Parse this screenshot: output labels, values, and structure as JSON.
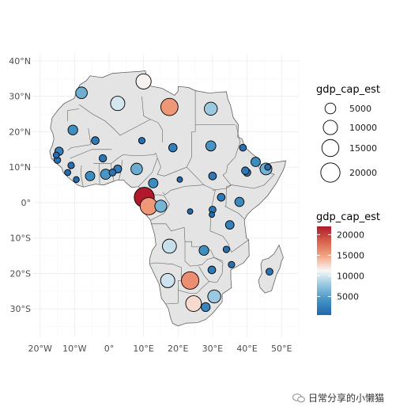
{
  "chart_data": {
    "type": "scatter",
    "subtype": "bubble-map",
    "region": "Africa",
    "title": "",
    "xlabel": "",
    "ylabel": "",
    "xlim": [
      -22,
      55
    ],
    "ylim": [
      -38,
      42
    ],
    "grid": true,
    "x_ticks": [
      {
        "value": -20,
        "label": "20°W"
      },
      {
        "value": -10,
        "label": "10°W"
      },
      {
        "value": 0,
        "label": "0°"
      },
      {
        "value": 10,
        "label": "10°E"
      },
      {
        "value": 20,
        "label": "20°E"
      },
      {
        "value": 30,
        "label": "30°E"
      },
      {
        "value": 40,
        "label": "40°E"
      },
      {
        "value": 50,
        "label": "50°E"
      }
    ],
    "y_ticks": [
      {
        "value": 40,
        "label": "40°N"
      },
      {
        "value": 30,
        "label": "30°N"
      },
      {
        "value": 20,
        "label": "20°N"
      },
      {
        "value": 10,
        "label": "10°N"
      },
      {
        "value": 0,
        "label": "0°"
      },
      {
        "value": -10,
        "label": "10°S"
      },
      {
        "value": -20,
        "label": "20°S"
      },
      {
        "value": -30,
        "label": "30°S"
      }
    ],
    "size_legend": {
      "title": "gdp_cap_est",
      "values": [
        5000,
        10000,
        15000,
        20000
      ],
      "labels": [
        "5000",
        "10000",
        "15000",
        "20000"
      ]
    },
    "color_legend": {
      "title": "gdp_cap_est",
      "min": 500,
      "max": 22000,
      "ticks": [
        {
          "value": 5000,
          "label": "5000"
        },
        {
          "value": 10000,
          "label": "10000"
        },
        {
          "value": 15000,
          "label": "15000"
        },
        {
          "value": 20000,
          "label": "20000"
        }
      ],
      "colors": [
        "#2166ac",
        "#4393c3",
        "#92c5de",
        "#f7f7f7",
        "#f4a582",
        "#d6604d",
        "#b2182b"
      ]
    },
    "points": [
      {
        "lon": 10.0,
        "lat": 34.2,
        "gdp": 11500
      },
      {
        "lon": 2.5,
        "lat": 28.0,
        "gdp": 10000
      },
      {
        "lon": -8.0,
        "lat": 31.0,
        "gdp": 6000
      },
      {
        "lon": 17.5,
        "lat": 27.0,
        "gdp": 15500
      },
      {
        "lon": 29.5,
        "lat": 26.5,
        "gdp": 8000
      },
      {
        "lon": -10.5,
        "lat": 20.5,
        "gdp": 3800
      },
      {
        "lon": -4.0,
        "lat": 17.5,
        "gdp": 2000
      },
      {
        "lon": 9.5,
        "lat": 17.5,
        "gdp": 1200
      },
      {
        "lon": 18.5,
        "lat": 15.5,
        "gdp": 2500
      },
      {
        "lon": 29.5,
        "lat": 16.0,
        "gdp": 4200
      },
      {
        "lon": 38.8,
        "lat": 15.5,
        "gdp": 1400
      },
      {
        "lon": 42.5,
        "lat": 11.5,
        "gdp": 3500
      },
      {
        "lon": 46.0,
        "lat": 10.0,
        "gdp": 1000
      },
      {
        "lon": 40.0,
        "lat": 8.5,
        "gdp": 1900
      },
      {
        "lon": 45.5,
        "lat": 9.5,
        "gdp": 6300
      },
      {
        "lon": -14.5,
        "lat": 14.5,
        "gdp": 2500
      },
      {
        "lon": -15.3,
        "lat": 13.4,
        "gdp": 1000
      },
      {
        "lon": -15.0,
        "lat": 12.0,
        "gdp": 1300
      },
      {
        "lon": -11.0,
        "lat": 10.5,
        "gdp": 1200
      },
      {
        "lon": -12.0,
        "lat": 8.5,
        "gdp": 1000
      },
      {
        "lon": -9.5,
        "lat": 6.5,
        "gdp": 900
      },
      {
        "lon": -5.5,
        "lat": 7.5,
        "gdp": 3500
      },
      {
        "lon": -1.8,
        "lat": 12.5,
        "gdp": 1800
      },
      {
        "lon": -1.0,
        "lat": 8.0,
        "gdp": 4300
      },
      {
        "lon": 1.0,
        "lat": 8.5,
        "gdp": 1500
      },
      {
        "lon": 2.5,
        "lat": 9.5,
        "gdp": 2200
      },
      {
        "lon": 8.0,
        "lat": 9.5,
        "gdp": 5900
      },
      {
        "lon": 12.8,
        "lat": 5.5,
        "gdp": 3500
      },
      {
        "lon": 20.5,
        "lat": 6.5,
        "gdp": 700
      },
      {
        "lon": 30.0,
        "lat": 7.5,
        "gdp": 2000
      },
      {
        "lon": 39.5,
        "lat": 9.0,
        "gdp": 1900
      },
      {
        "lon": 10.2,
        "lat": 1.5,
        "gdp": 22000
      },
      {
        "lon": 11.5,
        "lat": -1.0,
        "gdp": 15500
      },
      {
        "lon": 15.0,
        "lat": -1.0,
        "gdp": 6500
      },
      {
        "lon": 23.5,
        "lat": -2.5,
        "gdp": 700
      },
      {
        "lon": 32.5,
        "lat": 1.5,
        "gdp": 2000
      },
      {
        "lon": 37.8,
        "lat": 0.2,
        "gdp": 3300
      },
      {
        "lon": 30.0,
        "lat": -2.0,
        "gdp": 1500
      },
      {
        "lon": 29.8,
        "lat": -3.4,
        "gdp": 700
      },
      {
        "lon": 35.0,
        "lat": -6.3,
        "gdp": 2700
      },
      {
        "lon": 17.5,
        "lat": -12.3,
        "gdp": 9500
      },
      {
        "lon": 27.5,
        "lat": -13.5,
        "gdp": 3800
      },
      {
        "lon": 34.0,
        "lat": -13.2,
        "gdp": 1200
      },
      {
        "lon": 35.5,
        "lat": -17.5,
        "gdp": 1200
      },
      {
        "lon": 29.8,
        "lat": -19.0,
        "gdp": 2000
      },
      {
        "lon": 46.5,
        "lat": -19.5,
        "gdp": 1500
      },
      {
        "lon": 17.0,
        "lat": -22.0,
        "gdp": 9800
      },
      {
        "lon": 23.5,
        "lat": -22.0,
        "gdp": 16000
      },
      {
        "lon": 24.5,
        "lat": -28.5,
        "gdp": 12500
      },
      {
        "lon": 30.5,
        "lat": -26.5,
        "gdp": 7900
      },
      {
        "lon": 28.0,
        "lat": -29.5,
        "gdp": 3000
      }
    ]
  },
  "watermark": {
    "icon": "wechat-icon",
    "text": "日常分享的小懒猫"
  }
}
